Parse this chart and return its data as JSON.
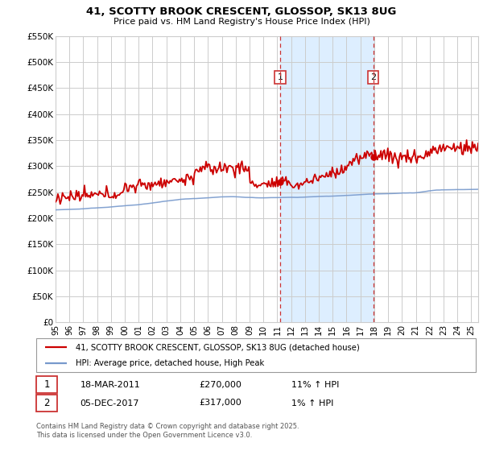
{
  "title": "41, SCOTTY BROOK CRESCENT, GLOSSOP, SK13 8UG",
  "subtitle": "Price paid vs. HM Land Registry's House Price Index (HPI)",
  "legend_line1": "41, SCOTTY BROOK CRESCENT, GLOSSOP, SK13 8UG (detached house)",
  "legend_line2": "HPI: Average price, detached house, High Peak",
  "footer": "Contains HM Land Registry data © Crown copyright and database right 2025.\nThis data is licensed under the Open Government Licence v3.0.",
  "event1_date": "18-MAR-2011",
  "event1_price": "£270,000",
  "event1_hpi": "11% ↑ HPI",
  "event2_date": "05-DEC-2017",
  "event2_price": "£317,000",
  "event2_hpi": "1% ↑ HPI",
  "event1_x": 2011.21,
  "event1_y": 270000,
  "event2_x": 2017.92,
  "event2_y": 317000,
  "vline1_x": 2011.21,
  "vline2_x": 2017.92,
  "shade_xmin": 2011.21,
  "shade_xmax": 2017.92,
  "xmin": 1995,
  "xmax": 2025.5,
  "ymin": 0,
  "ymax": 550000,
  "yticks": [
    0,
    50000,
    100000,
    150000,
    200000,
    250000,
    300000,
    350000,
    400000,
    450000,
    500000,
    550000
  ],
  "ytick_labels": [
    "£0",
    "£50K",
    "£100K",
    "£150K",
    "£200K",
    "£250K",
    "£300K",
    "£350K",
    "£400K",
    "£450K",
    "£500K",
    "£550K"
  ],
  "xticks": [
    1995,
    1996,
    1997,
    1998,
    1999,
    2000,
    2001,
    2002,
    2003,
    2004,
    2005,
    2006,
    2007,
    2008,
    2009,
    2010,
    2011,
    2012,
    2013,
    2014,
    2015,
    2016,
    2017,
    2018,
    2019,
    2020,
    2021,
    2022,
    2023,
    2024,
    2025
  ],
  "xtick_labels": [
    "95",
    "96",
    "97",
    "98",
    "99",
    "00",
    "01",
    "02",
    "03",
    "04",
    "05",
    "06",
    "07",
    "08",
    "09",
    "10",
    "11",
    "12",
    "13",
    "14",
    "15",
    "16",
    "17",
    "18",
    "19",
    "20",
    "21",
    "22",
    "23",
    "24",
    "25"
  ],
  "red_color": "#cc0000",
  "blue_color": "#7799cc",
  "shade_color": "#ddeeff",
  "grid_color": "#cccccc",
  "vline_color": "#cc3333",
  "event_box_color": "#cc3333"
}
